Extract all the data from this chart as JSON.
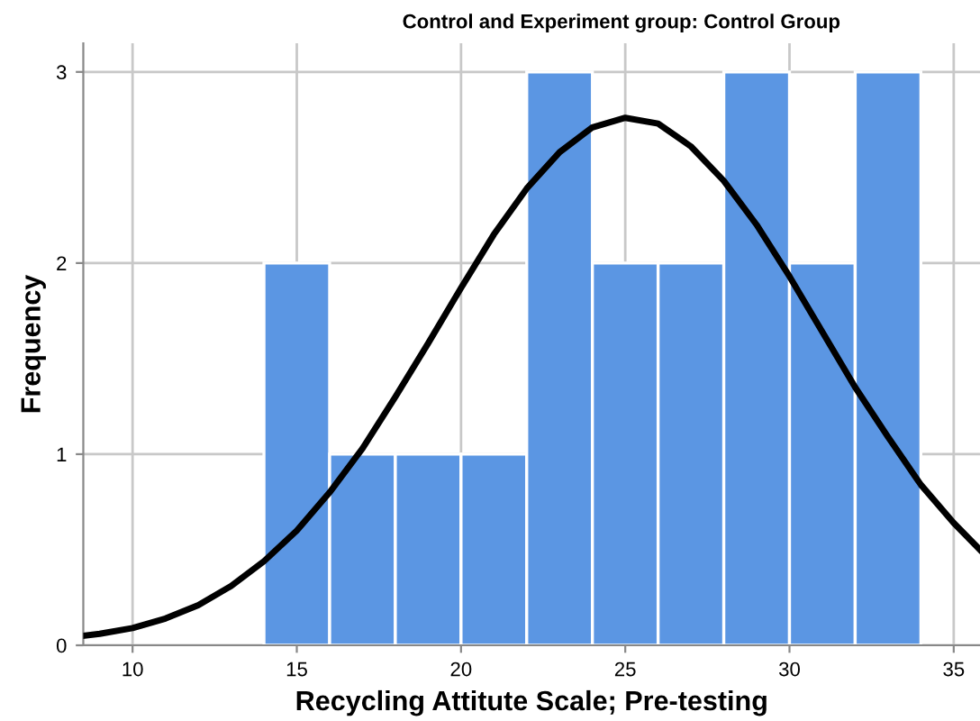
{
  "chart_data": {
    "type": "histogram",
    "title": "Control and Experiment group: Control Group",
    "xlabel": "Recycling Attitute Scale; Pre-testing",
    "ylabel": "Frequency",
    "bins": [
      14,
      16,
      18,
      20,
      22,
      24,
      26,
      28,
      30,
      32,
      34
    ],
    "values": [
      2,
      1,
      1,
      1,
      3,
      2,
      2,
      3,
      2,
      3
    ],
    "color": "#5b96e3",
    "series": [
      {
        "type": "line",
        "color": "#000000",
        "x": [
          8.5,
          9,
          10,
          11,
          12,
          13,
          14,
          15,
          16,
          17,
          18,
          19,
          20,
          21,
          22,
          23,
          24,
          25,
          26,
          27,
          28,
          29,
          30,
          31,
          32,
          33,
          34,
          35,
          35.8
        ],
        "values": [
          0.05,
          0.06,
          0.09,
          0.14,
          0.21,
          0.31,
          0.44,
          0.6,
          0.8,
          1.03,
          1.3,
          1.58,
          1.87,
          2.15,
          2.39,
          2.58,
          2.71,
          2.76,
          2.73,
          2.61,
          2.43,
          2.2,
          1.93,
          1.64,
          1.35,
          1.09,
          0.84,
          0.64,
          0.5
        ]
      }
    ],
    "xlim": [
      8.5,
      35.8
    ],
    "xticks": [
      10,
      15,
      20,
      25,
      30,
      35
    ],
    "ylim": [
      0,
      3.15
    ],
    "yticks": [
      0,
      1,
      2,
      3
    ],
    "grid": true
  }
}
